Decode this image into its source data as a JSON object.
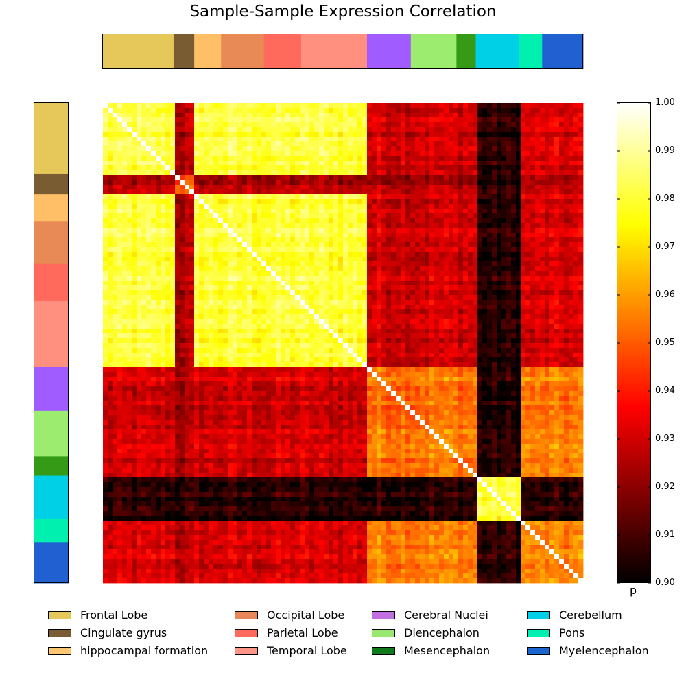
{
  "title": "Sample-Sample Expression Correlation",
  "chart_data": {
    "type": "heatmap",
    "title": "Sample-Sample Expression Correlation",
    "colormap": "hot",
    "colorbar": {
      "label": "p",
      "range": [
        0.9,
        1.0
      ],
      "ticks": [
        "1.00",
        "0.99",
        "0.98",
        "0.97",
        "0.96",
        "0.95",
        "0.94",
        "0.93",
        "0.92",
        "0.91",
        "0.90"
      ]
    },
    "sample_groups": [
      {
        "region": "Frontal Lobe",
        "color": "#e6c85a",
        "fraction": 0.15
      },
      {
        "region": "Cingulate gyrus",
        "color": "#7a5c33",
        "fraction": 0.044
      },
      {
        "region": "hippocampal formation",
        "color": "#ffbf66",
        "fraction": 0.057
      },
      {
        "region": "Occipital Lobe",
        "color": "#e88a55",
        "fraction": 0.091
      },
      {
        "region": "Parietal Lobe",
        "color": "#ff6a5c",
        "fraction": 0.079
      },
      {
        "region": "Temporal Lobe",
        "color": "#ff9080",
        "fraction": 0.14
      },
      {
        "region": "Cerebral Nuclei",
        "color": "#a05cff",
        "fraction": 0.093
      },
      {
        "region": "Diencephalon",
        "color": "#9cec70",
        "fraction": 0.097
      },
      {
        "region": "Mesencephalon",
        "color": "#359b16",
        "fraction": 0.041
      },
      {
        "region": "Cerebellum",
        "color": "#00d0e6",
        "fraction": 0.091
      },
      {
        "region": "Pons",
        "color": "#00f0b0",
        "fraction": 0.05
      },
      {
        "region": "Myelencephalon",
        "color": "#2060d0",
        "fraction": 0.087
      }
    ],
    "block_mean_correlation": {
      "cortex_vs_cortex": 0.98,
      "cortex_vs_subcortex": 0.93,
      "cerebellum_vs_cerebellum": 0.98,
      "cerebellum_vs_other": 0.905,
      "subcortex_vs_subcortex": 0.955
    },
    "legend": {
      "placement": "bottom",
      "entries": [
        {
          "label": "Frontal Lobe",
          "color": "#e6c85a"
        },
        {
          "label": "Cingulate gyrus",
          "color": "#7a5c33"
        },
        {
          "label": "hippocampal formation",
          "color": "#ffc870"
        },
        {
          "label": "Occipital Lobe",
          "color": "#e8875a"
        },
        {
          "label": "Parietal Lobe",
          "color": "#ff6a5c"
        },
        {
          "label": "Temporal Lobe",
          "color": "#ff9688"
        },
        {
          "label": "Cerebral Nuclei",
          "color": "#c070e0"
        },
        {
          "label": "Diencephalon",
          "color": "#98e870"
        },
        {
          "label": "Mesencephalon",
          "color": "#0e7a1a"
        },
        {
          "label": "Cerebellum",
          "color": "#00cfe8"
        },
        {
          "label": "Pons",
          "color": "#00f0b4"
        },
        {
          "label": "Myelencephalon",
          "color": "#1c64d0"
        }
      ]
    }
  }
}
